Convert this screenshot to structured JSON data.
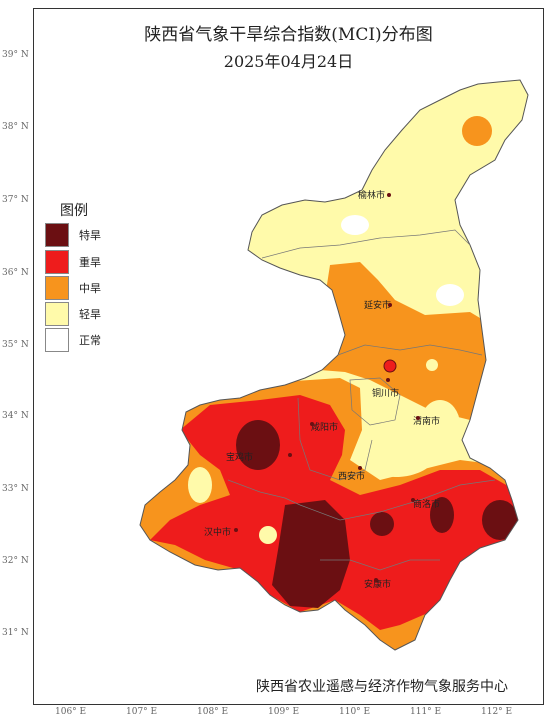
{
  "title": "陕西省气象干旱综合指数(MCI)分布图",
  "date": "2025年04月24日",
  "footer": "陕西省农业遥感与经济作物气象服务中心",
  "legend": {
    "title": "图例",
    "items": [
      {
        "label": "特旱",
        "color": "#6b0f12"
      },
      {
        "label": "重旱",
        "color": "#ee1c1c"
      },
      {
        "label": "中旱",
        "color": "#f7941d"
      },
      {
        "label": "轻旱",
        "color": "#fffaaa"
      },
      {
        "label": "正常",
        "color": "#ffffff"
      }
    ]
  },
  "lat_labels": [
    "39° N",
    "38° N",
    "37° N",
    "36° N",
    "35° N",
    "34° N",
    "33° N",
    "32° N",
    "31° N"
  ],
  "lon_labels": [
    "106° E",
    "107° E",
    "108° E",
    "109° E",
    "110° E",
    "111° E",
    "112° E"
  ],
  "cities": [
    "榆林市",
    "延安市",
    "铜川市",
    "渭南市",
    "咸阳市",
    "宝鸡市",
    "西安市",
    "商洛市",
    "汉中市",
    "安康市"
  ]
}
